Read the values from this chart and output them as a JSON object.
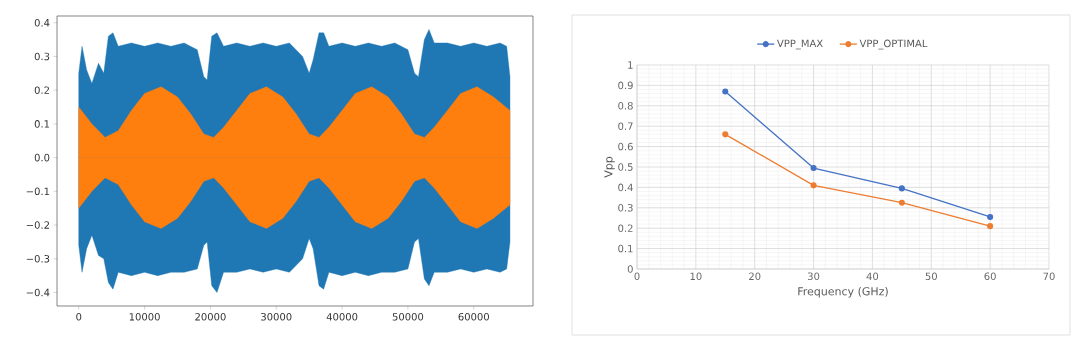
{
  "chart_data": [
    {
      "type": "area",
      "series": [
        {
          "color": "#1f77b4",
          "x": [
            0,
            500,
            1200,
            2000,
            3000,
            3800,
            4500,
            5200,
            6000,
            8000,
            10000,
            12000,
            14000,
            16000,
            18000,
            19000,
            19500,
            20200,
            21000,
            22000,
            24000,
            26000,
            28000,
            30000,
            32000,
            34000,
            35000,
            35600,
            36500,
            37200,
            38000,
            40000,
            42000,
            44000,
            46000,
            48000,
            50000,
            51000,
            51600,
            52500,
            53200,
            54000,
            56000,
            58000,
            60000,
            62000,
            64000,
            65000,
            65500
          ],
          "values": [
            0.25,
            0.33,
            0.26,
            0.22,
            0.28,
            0.25,
            0.36,
            0.37,
            0.33,
            0.34,
            0.33,
            0.34,
            0.33,
            0.34,
            0.32,
            0.24,
            0.23,
            0.36,
            0.37,
            0.33,
            0.34,
            0.33,
            0.34,
            0.33,
            0.34,
            0.3,
            0.25,
            0.29,
            0.37,
            0.37,
            0.33,
            0.34,
            0.33,
            0.34,
            0.33,
            0.34,
            0.32,
            0.25,
            0.24,
            0.35,
            0.38,
            0.34,
            0.34,
            0.33,
            0.34,
            0.33,
            0.34,
            0.33,
            0.24
          ]
        },
        {
          "color": "#1f77b4",
          "x": [
            0,
            500,
            1200,
            2000,
            3000,
            3800,
            4500,
            5200,
            6000,
            8000,
            10000,
            12000,
            14000,
            16000,
            18000,
            19000,
            19500,
            20200,
            21000,
            22000,
            24000,
            26000,
            28000,
            30000,
            32000,
            34000,
            35000,
            35600,
            36500,
            37200,
            38000,
            40000,
            42000,
            44000,
            46000,
            48000,
            50000,
            51000,
            51600,
            52500,
            53200,
            54000,
            56000,
            58000,
            60000,
            62000,
            64000,
            65000,
            65500
          ],
          "values": [
            -0.26,
            -0.34,
            -0.27,
            -0.23,
            -0.29,
            -0.3,
            -0.37,
            -0.39,
            -0.34,
            -0.35,
            -0.34,
            -0.35,
            -0.34,
            -0.34,
            -0.33,
            -0.26,
            -0.25,
            -0.38,
            -0.4,
            -0.34,
            -0.34,
            -0.33,
            -0.34,
            -0.33,
            -0.34,
            -0.3,
            -0.24,
            -0.27,
            -0.38,
            -0.39,
            -0.34,
            -0.35,
            -0.34,
            -0.35,
            -0.34,
            -0.34,
            -0.33,
            -0.25,
            -0.24,
            -0.36,
            -0.38,
            -0.34,
            -0.34,
            -0.33,
            -0.34,
            -0.33,
            -0.34,
            -0.33,
            -0.25
          ]
        },
        {
          "color": "#ff7f0e",
          "x": [
            0,
            2000,
            4000,
            6000,
            8000,
            10000,
            12500,
            15000,
            17000,
            19000,
            20500,
            22000,
            24000,
            26000,
            28500,
            31000,
            33000,
            35000,
            36500,
            38000,
            40000,
            42000,
            44500,
            47000,
            49000,
            51000,
            52500,
            54000,
            56000,
            58000,
            60500,
            63000,
            65500
          ],
          "values": [
            0.15,
            0.1,
            0.06,
            0.08,
            0.14,
            0.19,
            0.21,
            0.18,
            0.13,
            0.07,
            0.06,
            0.09,
            0.14,
            0.19,
            0.21,
            0.18,
            0.13,
            0.07,
            0.06,
            0.09,
            0.14,
            0.19,
            0.21,
            0.18,
            0.13,
            0.07,
            0.06,
            0.09,
            0.14,
            0.19,
            0.21,
            0.18,
            0.14
          ]
        },
        {
          "color": "#ff7f0e",
          "x": [
            0,
            2000,
            4000,
            6000,
            8000,
            10000,
            12500,
            15000,
            17000,
            19000,
            20500,
            22000,
            24000,
            26000,
            28500,
            31000,
            33000,
            35000,
            36500,
            38000,
            40000,
            42000,
            44500,
            47000,
            49000,
            51000,
            52500,
            54000,
            56000,
            58000,
            60500,
            63000,
            65500
          ],
          "values": [
            -0.15,
            -0.1,
            -0.06,
            -0.08,
            -0.14,
            -0.19,
            -0.21,
            -0.18,
            -0.13,
            -0.07,
            -0.06,
            -0.09,
            -0.14,
            -0.19,
            -0.21,
            -0.18,
            -0.13,
            -0.07,
            -0.06,
            -0.09,
            -0.14,
            -0.19,
            -0.21,
            -0.18,
            -0.13,
            -0.07,
            -0.06,
            -0.09,
            -0.14,
            -0.19,
            -0.21,
            -0.18,
            -0.14
          ]
        }
      ],
      "xlim": [
        -3300,
        69000
      ],
      "ylim": [
        -0.44,
        0.42
      ],
      "xticks": [
        0,
        10000,
        20000,
        30000,
        40000,
        50000,
        60000
      ],
      "yticks": [
        {
          "value": -0.4,
          "label": "−0.4"
        },
        {
          "value": -0.3,
          "label": "−0.3"
        },
        {
          "value": -0.2,
          "label": "−0.2"
        },
        {
          "value": -0.1,
          "label": "−0.1"
        },
        {
          "value": 0,
          "label": "0.0"
        },
        0.1,
        0.2,
        0.3,
        0.4
      ]
    },
    {
      "type": "line",
      "xlabel": "Frequency (GHz)",
      "ylabel": "Vpp",
      "x": [
        15,
        30,
        45,
        60
      ],
      "series": [
        {
          "name": "VPP_MAX",
          "color": "#4472c4",
          "values": [
            0.87,
            0.495,
            0.395,
            0.255
          ]
        },
        {
          "name": "VPP_OPTIMAL",
          "color": "#ed7d31",
          "values": [
            0.66,
            0.41,
            0.325,
            0.21
          ]
        }
      ],
      "xlim": [
        0,
        70
      ],
      "ylim": [
        0,
        1
      ],
      "xticks": [
        0,
        10,
        20,
        30,
        40,
        50,
        60,
        70
      ],
      "yticks": [
        0,
        0.1,
        0.2,
        0.3,
        0.4,
        0.5,
        0.6,
        0.7,
        0.8,
        0.9,
        1
      ],
      "grid": true,
      "legend": "top",
      "marker": "circle",
      "line_style": "solid"
    }
  ]
}
